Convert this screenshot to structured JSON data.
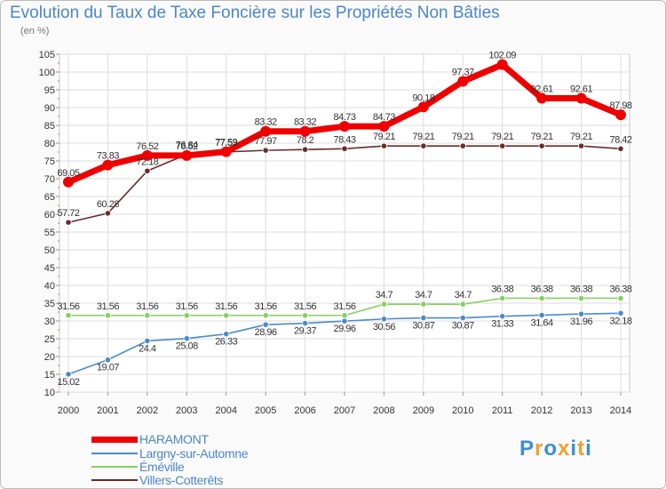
{
  "title": "Evolution du Taux de Taxe Foncière sur les Propriétés Non Bâties",
  "unit_label": "(en %)",
  "logo": {
    "letters": [
      "P",
      "r",
      "o",
      "x",
      "i",
      "t",
      "i"
    ],
    "colors": [
      "#3a8fd8",
      "#f0a030",
      "#3a8fd8",
      "#f0a030",
      "#3a8fd8",
      "#f0a030",
      "#3a8fd8"
    ]
  },
  "chart_data": {
    "type": "line",
    "title": "Evolution du Taux de Taxe Foncière sur les Propriétés Non Bâties",
    "ylabel": "(en %)",
    "xlabel": "",
    "x": [
      "2000",
      "2001",
      "2002",
      "2003",
      "2004",
      "2005",
      "2006",
      "2007",
      "2008",
      "2009",
      "2010",
      "2011",
      "2012",
      "2013",
      "2014"
    ],
    "ylim": [
      10,
      105
    ],
    "yticks": [
      "10",
      "15",
      "20",
      "25",
      "30",
      "35",
      "40",
      "45",
      "50",
      "55",
      "60",
      "65",
      "70",
      "75",
      "80",
      "85",
      "90",
      "95",
      "100",
      "105"
    ],
    "grid": true,
    "legend": "bottom-left",
    "series": [
      {
        "name": "HARAMONT",
        "color": "#ee0000",
        "weight": "thick",
        "values": [
          69.05,
          73.83,
          76.52,
          76.52,
          77.59,
          83.32,
          83.32,
          84.73,
          84.73,
          90.18,
          97.37,
          102.09,
          92.61,
          92.61,
          87.98
        ],
        "labels": [
          "69.05",
          "73.83",
          "76.52",
          "76.52",
          "77.59",
          "83.32",
          "83.32",
          "84.73",
          "84.73",
          "90.18",
          "97.37",
          "102.09",
          "92.61",
          "92.61",
          "87.98"
        ]
      },
      {
        "name": "Largny-sur-Automne",
        "color": "#4a8cc8",
        "weight": "thin",
        "values": [
          15.02,
          19.07,
          24.4,
          25.08,
          26.33,
          28.96,
          29.37,
          29.96,
          30.56,
          30.87,
          30.87,
          31.33,
          31.64,
          31.96,
          32.18
        ],
        "labels": [
          "15.02",
          "19.07",
          "24.4",
          "25.08",
          "26.33",
          "28.96",
          "29.37",
          "29.96",
          "30.56",
          "30.87",
          "30.87",
          "31.33",
          "31.64",
          "31.96",
          "32.18"
        ]
      },
      {
        "name": "Éméville",
        "color": "#86d060",
        "weight": "thin",
        "values": [
          31.56,
          31.56,
          31.56,
          31.56,
          31.56,
          31.56,
          31.56,
          31.56,
          34.7,
          34.7,
          34.7,
          36.38,
          36.38,
          36.38,
          36.38
        ],
        "labels": [
          "31.56",
          "31.56",
          "31.56",
          "31.56",
          "31.56",
          "31.56",
          "31.56",
          "31.56",
          "34.7",
          "34.7",
          "34.7",
          "36.38",
          "36.38",
          "36.38",
          "36.38"
        ]
      },
      {
        "name": "Villers-Cotterêts",
        "color": "#6b2a2a",
        "weight": "thin",
        "values": [
          57.72,
          60.28,
          72.18,
          76.84,
          77.53,
          77.97,
          78.2,
          78.43,
          79.21,
          79.21,
          79.21,
          79.21,
          79.21,
          79.21,
          78.42
        ],
        "labels": [
          "57.72",
          "60.28",
          "72.18",
          "76.84",
          "77.53",
          "77.97",
          "78.2",
          "78.43",
          "79.21",
          "79.21",
          "79.21",
          "79.21",
          "79.21",
          "79.21",
          "78.42"
        ]
      }
    ]
  }
}
